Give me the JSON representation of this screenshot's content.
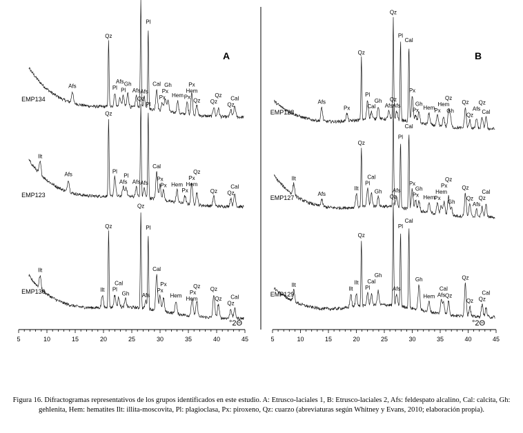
{
  "caption": "Figura 16. Difractogramas representativos de los grupos identificados en este estudio. A: Etrusco-laciales 1, B: Etrusco-laciales 2, Afs: feldespato alcalino, Cal: calcita, Gh: gehlenita, Hem: hematites Ilt: illita-moscovita, Pl: plagioclasa, Px: piroxeno, Qz: cuarzo (abreviaturas según Whitney y Evans, 2010; elaboración propia).",
  "chart_data": [
    {
      "type": "line",
      "panel": "A",
      "x_ticks": [
        5,
        10,
        15,
        20,
        25,
        30,
        35,
        40,
        45
      ],
      "x_range": [
        5,
        45
      ],
      "x_unit": "°2Θ",
      "series": [
        {
          "name": "EMP134",
          "peaks": [
            {
              "x": 14.5,
              "label": "Afs"
            },
            {
              "x": 20.9,
              "label": "Qz"
            },
            {
              "x": 22.0,
              "label": "Pl"
            },
            {
              "x": 22.9,
              "label": "Afs"
            },
            {
              "x": 23.5,
              "label": "Pl"
            },
            {
              "x": 24.3,
              "label": "Gh"
            },
            {
              "x": 25.8,
              "label": "Afs"
            },
            {
              "x": 26.6,
              "label": "Qz"
            },
            {
              "x": 27.2,
              "label": "Afs"
            },
            {
              "x": 27.9,
              "label": "Pl"
            },
            {
              "x": 29.4,
              "label": "Cal"
            },
            {
              "x": 30.4,
              "label": "Px"
            },
            {
              "x": 30.9,
              "label": "Px"
            },
            {
              "x": 31.4,
              "label": "Gh"
            },
            {
              "x": 33.1,
              "label": "Hem"
            },
            {
              "x": 34.8,
              "label": "Px"
            },
            {
              "x": 35.6,
              "label": "Hem"
            },
            {
              "x": 35.6,
              "label": "Px"
            },
            {
              "x": 36.5,
              "label": "Qz"
            },
            {
              "x": 39.5,
              "label": "Qz"
            },
            {
              "x": 40.3,
              "label": "Qz"
            },
            {
              "x": 42.5,
              "label": "Qz"
            },
            {
              "x": 43.2,
              "label": "Cal"
            }
          ]
        },
        {
          "name": "EMP123",
          "peaks": [
            {
              "x": 8.8,
              "label": "Ilt"
            },
            {
              "x": 13.8,
              "label": "Afs"
            },
            {
              "x": 20.9,
              "label": "Qz"
            },
            {
              "x": 22.0,
              "label": "Pl"
            },
            {
              "x": 23.5,
              "label": "Afs"
            },
            {
              "x": 24.0,
              "label": "Pl"
            },
            {
              "x": 25.8,
              "label": "Afs"
            },
            {
              "x": 26.6,
              "label": "Qz"
            },
            {
              "x": 27.2,
              "label": "Afs"
            },
            {
              "x": 27.9,
              "label": "Pl"
            },
            {
              "x": 29.4,
              "label": "Cal"
            },
            {
              "x": 30.0,
              "label": "Px"
            },
            {
              "x": 30.6,
              "label": "Px"
            },
            {
              "x": 33.0,
              "label": "Hem"
            },
            {
              "x": 34.4,
              "label": "Px"
            },
            {
              "x": 35.6,
              "label": "Hem"
            },
            {
              "x": 35.6,
              "label": "Px"
            },
            {
              "x": 36.5,
              "label": "Qz"
            },
            {
              "x": 39.5,
              "label": "Qz"
            },
            {
              "x": 42.5,
              "label": "Qz"
            },
            {
              "x": 43.2,
              "label": "Cal"
            }
          ]
        },
        {
          "name": "EMP130",
          "peaks": [
            {
              "x": 8.8,
              "label": "Ilt"
            },
            {
              "x": 19.8,
              "label": "Ilt"
            },
            {
              "x": 20.9,
              "label": "Qz"
            },
            {
              "x": 22.0,
              "label": "Pl"
            },
            {
              "x": 22.7,
              "label": "Cal"
            },
            {
              "x": 23.9,
              "label": "Gh"
            },
            {
              "x": 26.6,
              "label": "Qz"
            },
            {
              "x": 27.5,
              "label": "Afs"
            },
            {
              "x": 27.9,
              "label": "Pl"
            },
            {
              "x": 29.4,
              "label": "Cal"
            },
            {
              "x": 30.0,
              "label": "Px"
            },
            {
              "x": 30.6,
              "label": "Px"
            },
            {
              "x": 32.8,
              "label": "Hem"
            },
            {
              "x": 35.6,
              "label": "Hem"
            },
            {
              "x": 35.8,
              "label": "Px"
            },
            {
              "x": 36.5,
              "label": "Qz"
            },
            {
              "x": 39.5,
              "label": "Qz"
            },
            {
              "x": 40.3,
              "label": "Qz"
            },
            {
              "x": 42.5,
              "label": "Qz"
            },
            {
              "x": 43.2,
              "label": "Cal"
            }
          ]
        }
      ]
    },
    {
      "type": "line",
      "panel": "B",
      "x_ticks": [
        5,
        10,
        15,
        20,
        25,
        30,
        35,
        40,
        45
      ],
      "x_range": [
        5,
        45
      ],
      "x_unit": "°2Θ",
      "series": [
        {
          "name": "EMP128",
          "peaks": [
            {
              "x": 13.8,
              "label": "Afs"
            },
            {
              "x": 18.3,
              "label": "Px"
            },
            {
              "x": 20.9,
              "label": "Qz"
            },
            {
              "x": 22.0,
              "label": "Pl"
            },
            {
              "x": 22.7,
              "label": "Cal"
            },
            {
              "x": 23.9,
              "label": "Gh"
            },
            {
              "x": 25.8,
              "label": "Afs"
            },
            {
              "x": 26.6,
              "label": "Qz"
            },
            {
              "x": 27.2,
              "label": "Afs"
            },
            {
              "x": 27.9,
              "label": "Pl"
            },
            {
              "x": 29.4,
              "label": "Cal"
            },
            {
              "x": 30.0,
              "label": "Px"
            },
            {
              "x": 30.6,
              "label": "Px"
            },
            {
              "x": 31.2,
              "label": "Gh"
            },
            {
              "x": 33.0,
              "label": "Hem"
            },
            {
              "x": 34.5,
              "label": "Px"
            },
            {
              "x": 35.6,
              "label": "Hem"
            },
            {
              "x": 36.5,
              "label": "Qz"
            },
            {
              "x": 36.8,
              "label": "Gh"
            },
            {
              "x": 39.5,
              "label": "Qz"
            },
            {
              "x": 40.3,
              "label": "Qz"
            },
            {
              "x": 41.5,
              "label": "Afs"
            },
            {
              "x": 42.5,
              "label": "Qz"
            },
            {
              "x": 43.2,
              "label": "Cal"
            }
          ]
        },
        {
          "name": "EMP127",
          "peaks": [
            {
              "x": 8.8,
              "label": "Ilt"
            },
            {
              "x": 13.8,
              "label": "Afs"
            },
            {
              "x": 20.0,
              "label": "Ilt"
            },
            {
              "x": 20.9,
              "label": "Qz"
            },
            {
              "x": 22.0,
              "label": "Pl"
            },
            {
              "x": 22.7,
              "label": "Cal"
            },
            {
              "x": 23.9,
              "label": "Gh"
            },
            {
              "x": 26.6,
              "label": "Qz"
            },
            {
              "x": 27.2,
              "label": "Afs"
            },
            {
              "x": 27.9,
              "label": "Pl"
            },
            {
              "x": 29.4,
              "label": "Cal"
            },
            {
              "x": 30.0,
              "label": "Px"
            },
            {
              "x": 30.6,
              "label": "Px"
            },
            {
              "x": 31.2,
              "label": "Gh"
            },
            {
              "x": 33.0,
              "label": "Hem"
            },
            {
              "x": 34.5,
              "label": "Px"
            },
            {
              "x": 35.2,
              "label": "Hem"
            },
            {
              "x": 35.7,
              "label": "Px"
            },
            {
              "x": 36.5,
              "label": "Qz"
            },
            {
              "x": 37.0,
              "label": "Gh"
            },
            {
              "x": 39.5,
              "label": "Qz"
            },
            {
              "x": 40.3,
              "label": "Qz"
            },
            {
              "x": 41.5,
              "label": "Afs"
            },
            {
              "x": 42.5,
              "label": "Qz"
            },
            {
              "x": 43.2,
              "label": "Cal"
            }
          ]
        },
        {
          "name": "EMP129",
          "peaks": [
            {
              "x": 8.8,
              "label": "Ilt"
            },
            {
              "x": 19.0,
              "label": "Ilt"
            },
            {
              "x": 20.0,
              "label": "Ilt"
            },
            {
              "x": 20.9,
              "label": "Qz"
            },
            {
              "x": 22.0,
              "label": "Pl"
            },
            {
              "x": 22.7,
              "label": "Cal"
            },
            {
              "x": 23.9,
              "label": "Gh"
            },
            {
              "x": 26.6,
              "label": "Qz"
            },
            {
              "x": 27.2,
              "label": "Afs"
            },
            {
              "x": 27.9,
              "label": "Pl"
            },
            {
              "x": 29.4,
              "label": "Cal"
            },
            {
              "x": 31.2,
              "label": "Gh"
            },
            {
              "x": 33.0,
              "label": "Hem"
            },
            {
              "x": 35.2,
              "label": "Afs"
            },
            {
              "x": 35.6,
              "label": "Cal"
            },
            {
              "x": 36.5,
              "label": "Qz"
            },
            {
              "x": 39.5,
              "label": "Qz"
            },
            {
              "x": 40.3,
              "label": "Qz"
            },
            {
              "x": 42.5,
              "label": "Qz"
            },
            {
              "x": 43.2,
              "label": "Cal"
            }
          ]
        }
      ]
    }
  ]
}
